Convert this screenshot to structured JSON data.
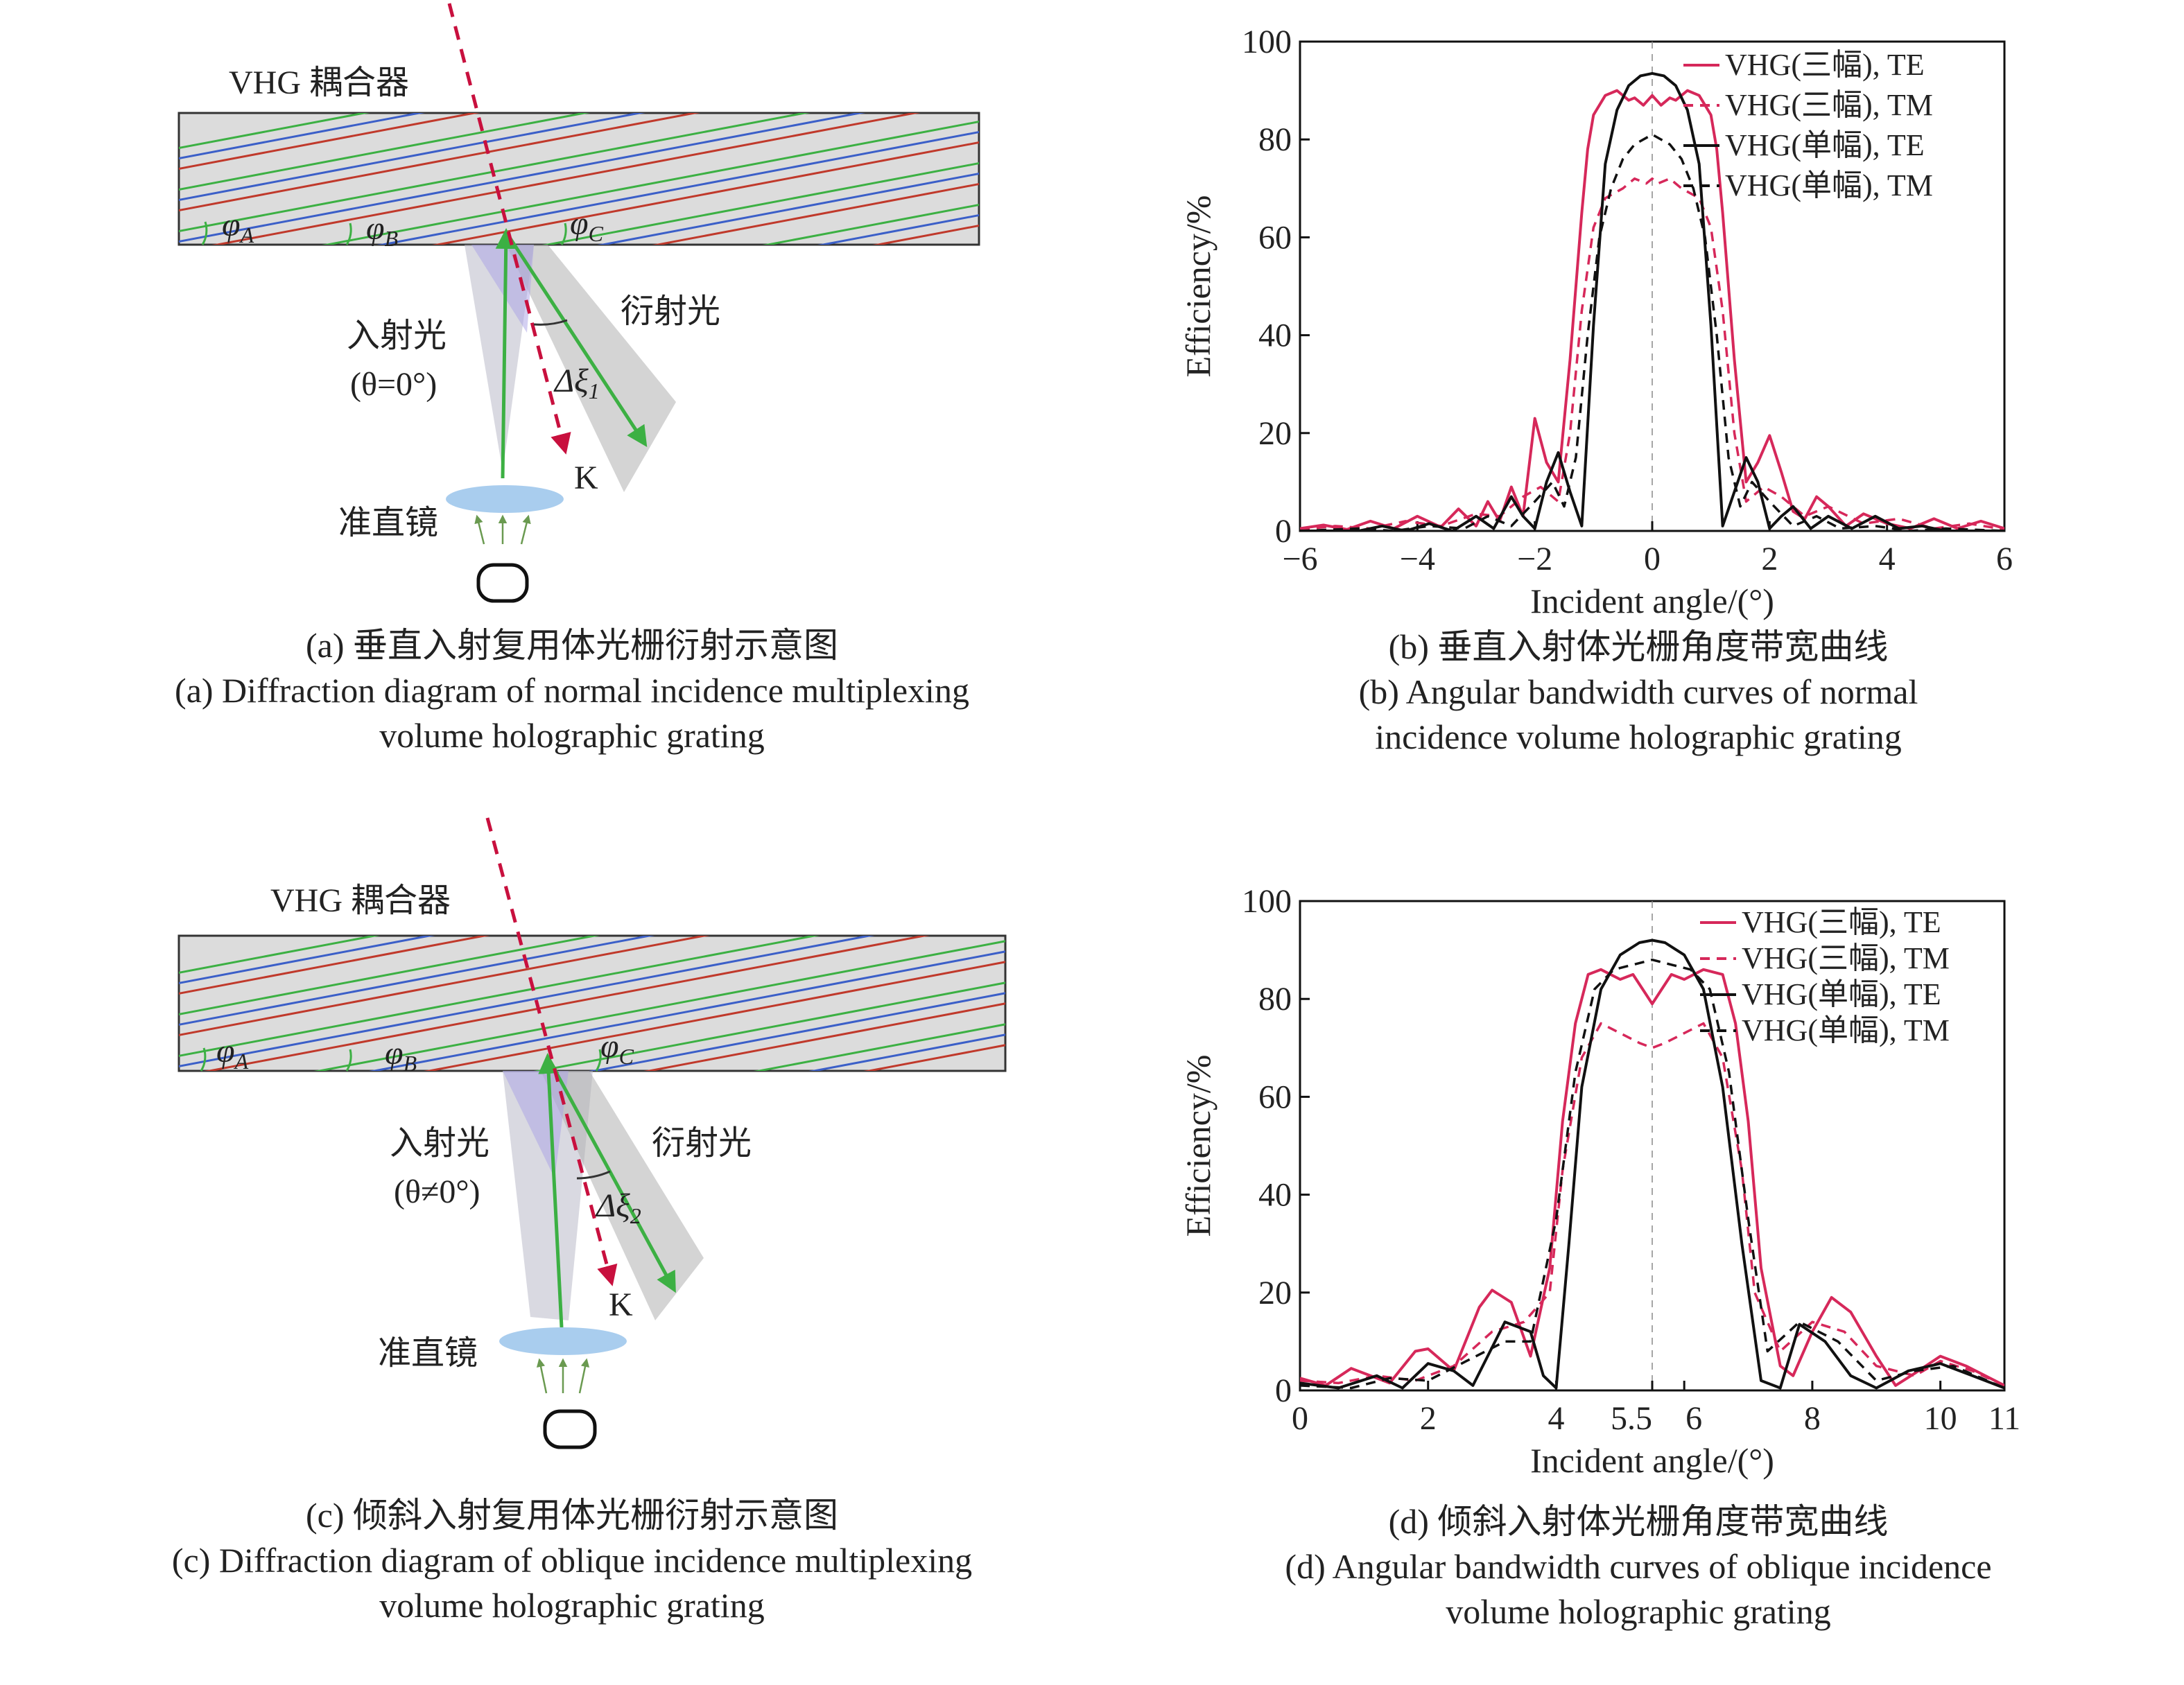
{
  "diagram_a": {
    "title": "VHG 耦合器",
    "phi_a": "φA",
    "phi_b": "φB",
    "phi_c": "φC",
    "incident_label": "入射光",
    "incident_angle": "(θ=0°)",
    "diffracted_label": "衍射光",
    "delta_label": "Δξ1",
    "k_label": "K",
    "lens_label": "准直镜",
    "caption_cn": "(a) 垂直入射复用体光栅衍射示意图",
    "caption_en_1": "(a) Diffraction diagram of normal incidence multiplexing",
    "caption_en_2": "volume holographic grating"
  },
  "diagram_c": {
    "title": "VHG 耦合器",
    "phi_a": "φA",
    "phi_b": "φB",
    "phi_c": "φC",
    "incident_label": "入射光",
    "incident_angle": "(θ≠0°)",
    "diffracted_label": "衍射光",
    "delta_label": "Δξ2",
    "k_label": "K",
    "lens_label": "准直镜",
    "caption_cn": "(c) 倾斜入射复用体光栅衍射示意图",
    "caption_en_1": "(c) Diffraction diagram of oblique incidence multiplexing",
    "caption_en_2": "volume holographic grating"
  },
  "colors": {
    "te_three": "#d6285a",
    "tm_three": "#d6285a",
    "te_single": "#111111",
    "tm_single": "#111111",
    "grating_red": "#c0392b",
    "grating_green": "#3cb043",
    "grating_blue": "#3b5fc8",
    "beam_green": "#3cb043",
    "k_vector": "#c8103e",
    "lens": "#a9cdee"
  },
  "chart_data": [
    {
      "type": "line",
      "caption_cn": "(b) 垂直入射体光栅角度带宽曲线",
      "caption_en_1": "(b) Angular bandwidth curves of normal",
      "caption_en_2": "incidence volume holographic grating",
      "xlabel": "Incident angle/(°)",
      "ylabel": "Efficiency/%",
      "xlim": [
        -6,
        6
      ],
      "ylim": [
        0,
        100
      ],
      "xticks": [
        "−6",
        "−4",
        "−2",
        "0",
        "2",
        "4",
        "6"
      ],
      "yticks": [
        "0",
        "20",
        "40",
        "60",
        "80",
        "100"
      ],
      "legend_position": "top-right",
      "series": [
        {
          "name": "VHG(三幅), TE",
          "style": "solid",
          "color": "#d6285a",
          "x": [
            -6,
            -5.6,
            -5.2,
            -4.8,
            -4.4,
            -4.0,
            -3.6,
            -3.3,
            -3.0,
            -2.8,
            -2.6,
            -2.4,
            -2.2,
            -2.0,
            -1.8,
            -1.6,
            -1.4,
            -1.2,
            -1.1,
            -1.0,
            -0.8,
            -0.6,
            -0.4,
            -0.3,
            -0.15,
            0,
            0.15,
            0.3,
            0.4,
            0.6,
            0.8,
            1.0,
            1.1,
            1.2,
            1.4,
            1.6,
            1.8,
            2.0,
            2.2,
            2.4,
            2.6,
            2.8,
            3.0,
            3.3,
            3.6,
            4.0,
            4.4,
            4.8,
            5.2,
            5.6,
            6
          ],
          "y": [
            0.5,
            1.2,
            0.3,
            2.0,
            0.5,
            3.0,
            0.8,
            4.5,
            1.0,
            6.0,
            2.0,
            9.0,
            3.0,
            23.0,
            14.0,
            10.0,
            35.0,
            65.0,
            78.0,
            85.0,
            89.0,
            90.0,
            88.0,
            88.5,
            87.0,
            89.0,
            87.0,
            88.5,
            88.0,
            90.0,
            89.0,
            85.0,
            78.0,
            65.0,
            35.0,
            10.0,
            14.0,
            19.5,
            12.0,
            4.0,
            2.5,
            7.0,
            5.0,
            1.0,
            3.5,
            1.5,
            0.5,
            2.5,
            0.5,
            2.0,
            0.5
          ]
        },
        {
          "name": "VHG(三幅), TM",
          "style": "dashed",
          "color": "#d6285a",
          "x": [
            -6,
            -5.4,
            -4.8,
            -4.2,
            -3.6,
            -3.0,
            -2.6,
            -2.2,
            -1.9,
            -1.6,
            -1.4,
            -1.2,
            -1.0,
            -0.8,
            -0.5,
            -0.3,
            -0.1,
            0,
            0.1,
            0.3,
            0.5,
            0.8,
            1.0,
            1.2,
            1.4,
            1.6,
            1.9,
            2.2,
            2.6,
            3.0,
            3.6,
            4.2,
            4.8,
            5.4,
            6
          ],
          "y": [
            0.3,
            1.0,
            0.5,
            2.0,
            1.0,
            3.5,
            3.0,
            7.0,
            9.0,
            6.0,
            20.0,
            45.0,
            62.0,
            68.0,
            70.0,
            72.0,
            71.0,
            72.0,
            71.0,
            72.0,
            70.0,
            68.0,
            62.0,
            45.0,
            20.0,
            6.0,
            9.0,
            7.0,
            3.0,
            5.0,
            1.5,
            2.5,
            0.5,
            1.5,
            0.3
          ]
        },
        {
          "name": "VHG(单幅), TE",
          "style": "solid",
          "color": "#111111",
          "x": [
            -6,
            -5.0,
            -4.6,
            -4.2,
            -3.8,
            -3.4,
            -3.0,
            -2.7,
            -2.4,
            -2.2,
            -2.0,
            -1.8,
            -1.6,
            -1.4,
            -1.2,
            -1.0,
            -0.8,
            -0.6,
            -0.4,
            -0.2,
            0,
            0.2,
            0.4,
            0.6,
            0.8,
            1.0,
            1.2,
            1.4,
            1.6,
            1.8,
            2.0,
            2.2,
            2.4,
            2.7,
            3.0,
            3.4,
            3.8,
            4.2,
            4.6,
            5.0,
            6
          ],
          "y": [
            0,
            0,
            1.0,
            0,
            1.5,
            0,
            3.0,
            0.5,
            7.0,
            3.0,
            0.5,
            10.0,
            16.0,
            8.0,
            1.0,
            42.0,
            75.0,
            86.0,
            91.0,
            93.0,
            93.5,
            93.0,
            91.0,
            86.0,
            75.0,
            42.0,
            1.0,
            8.0,
            15.0,
            10.0,
            0.5,
            3.0,
            5.0,
            0.5,
            3.0,
            0.5,
            3.0,
            0.5,
            1.0,
            0,
            0
          ]
        },
        {
          "name": "VHG(单幅), TM",
          "style": "dashed",
          "color": "#111111",
          "x": [
            -6,
            -5.0,
            -4.4,
            -3.8,
            -3.2,
            -2.8,
            -2.4,
            -2.0,
            -1.7,
            -1.5,
            -1.3,
            -1.1,
            -0.9,
            -0.7,
            -0.5,
            -0.3,
            0,
            0.3,
            0.5,
            0.7,
            0.9,
            1.1,
            1.3,
            1.5,
            1.7,
            2.0,
            2.4,
            2.8,
            3.2,
            3.8,
            4.4,
            5.0,
            6
          ],
          "y": [
            0,
            0.5,
            0,
            1.0,
            0.5,
            3.0,
            1.0,
            6.0,
            10.0,
            5.0,
            15.0,
            40.0,
            60.0,
            70.0,
            76.0,
            79.0,
            81.0,
            79.0,
            76.0,
            70.0,
            60.0,
            40.0,
            15.0,
            5.0,
            10.0,
            6.0,
            1.0,
            3.0,
            0.5,
            1.0,
            0,
            0.5,
            0
          ]
        }
      ]
    },
    {
      "type": "line",
      "caption_cn": "(d) 倾斜入射体光栅角度带宽曲线",
      "caption_en_1": "(d) Angular bandwidth curves of oblique incidence",
      "caption_en_2": "volume holographic grating",
      "xlabel": "Incident angle/(°)",
      "ylabel": "Efficiency/%",
      "xlim": [
        0,
        11
      ],
      "ylim": [
        0,
        100
      ],
      "xticks": [
        "0",
        "2",
        "4",
        "5.5",
        "6",
        "8",
        "10",
        "11"
      ],
      "xtick_values": [
        0,
        2,
        4,
        5.5,
        6,
        8,
        10,
        11
      ],
      "yticks": [
        "0",
        "20",
        "40",
        "60",
        "80",
        "100"
      ],
      "legend_position": "top-right",
      "series": [
        {
          "name": "VHG(三幅), TE",
          "style": "solid",
          "color": "#d6285a",
          "x": [
            0,
            0.4,
            0.8,
            1.1,
            1.4,
            1.8,
            2.0,
            2.4,
            2.8,
            3.0,
            3.3,
            3.6,
            3.9,
            4.1,
            4.3,
            4.5,
            4.7,
            5.0,
            5.2,
            5.4,
            5.5,
            5.6,
            5.8,
            6.0,
            6.3,
            6.6,
            6.8,
            7.0,
            7.2,
            7.5,
            7.7,
            8.0,
            8.3,
            8.6,
            9.0,
            9.3,
            9.6,
            10.0,
            10.4,
            11
          ],
          "y": [
            2.5,
            1.0,
            4.5,
            3.0,
            1.5,
            8.0,
            8.5,
            4.0,
            17.0,
            20.5,
            18.0,
            7.0,
            25.0,
            55.0,
            75.0,
            85.0,
            86.0,
            84.0,
            85.0,
            81.0,
            79.0,
            81.0,
            85.0,
            84.0,
            86.0,
            85.0,
            75.0,
            55.0,
            25.0,
            5.0,
            3.0,
            12.0,
            19.0,
            16.0,
            7.0,
            1.0,
            3.5,
            7.0,
            5.0,
            1.0
          ]
        },
        {
          "name": "VHG(三幅), TM",
          "style": "dashed",
          "color": "#d6285a",
          "x": [
            0,
            0.6,
            1.2,
            1.8,
            2.4,
            3.0,
            3.5,
            3.9,
            4.1,
            4.4,
            4.7,
            5.0,
            5.3,
            5.5,
            5.7,
            6.0,
            6.3,
            6.6,
            6.9,
            7.1,
            7.5,
            8.0,
            8.5,
            9.0,
            9.6,
            10.0,
            10.5,
            11
          ],
          "y": [
            2.0,
            1.5,
            3.0,
            2.0,
            5.0,
            12.0,
            14.0,
            20.0,
            45.0,
            68.0,
            75.0,
            73.0,
            71.0,
            70.0,
            71.0,
            73.0,
            75.0,
            68.0,
            45.0,
            20.0,
            8.0,
            14.0,
            12.0,
            5.0,
            3.0,
            6.0,
            4.0,
            1.0
          ]
        },
        {
          "name": "VHG(单幅), TE",
          "style": "solid",
          "color": "#111111",
          "x": [
            0,
            0.6,
            1.2,
            1.6,
            2.0,
            2.4,
            2.7,
            3.2,
            3.6,
            3.8,
            4.0,
            4.2,
            4.4,
            4.7,
            5.0,
            5.3,
            5.5,
            5.7,
            6.0,
            6.3,
            6.6,
            6.9,
            7.2,
            7.5,
            7.8,
            8.2,
            8.6,
            9.0,
            9.5,
            10.0,
            10.5,
            11
          ],
          "y": [
            1.5,
            0.5,
            3.0,
            0.5,
            5.5,
            4.0,
            1.0,
            14.0,
            12.0,
            3.0,
            0.5,
            30.0,
            62.0,
            82.0,
            89.0,
            91.5,
            92.0,
            91.5,
            89.0,
            82.0,
            62.0,
            30.0,
            2.0,
            0.5,
            13.5,
            10.0,
            3.0,
            0.5,
            4.0,
            5.5,
            3.0,
            0.5
          ]
        },
        {
          "name": "VHG(单幅), TM",
          "style": "dashed",
          "color": "#111111",
          "x": [
            0,
            0.8,
            1.4,
            2.0,
            2.6,
            3.2,
            3.6,
            4.0,
            4.3,
            4.6,
            4.9,
            5.2,
            5.5,
            5.8,
            6.1,
            6.4,
            6.7,
            7.0,
            7.3,
            7.8,
            8.4,
            9.0,
            9.6,
            10.2,
            11
          ],
          "y": [
            1.0,
            0.5,
            2.5,
            2.0,
            6.0,
            10.0,
            10.0,
            35.0,
            65.0,
            82.0,
            86.0,
            87.0,
            88.0,
            87.0,
            86.0,
            82.0,
            65.0,
            35.0,
            8.0,
            14.0,
            10.0,
            2.0,
            4.0,
            5.0,
            0.5
          ]
        }
      ]
    }
  ]
}
